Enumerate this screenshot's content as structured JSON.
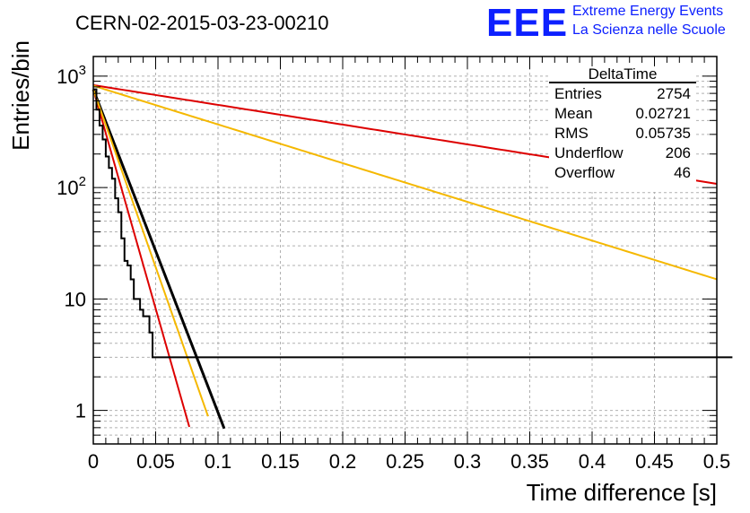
{
  "header": {
    "run_title": "CERN-02-2015-03-23-00210",
    "logo_text": "EEE",
    "logo_line1": "Extreme Energy Events",
    "logo_line2": "La Scienza nelle Scuole"
  },
  "stats_box": {
    "title": "DeltaTime",
    "rows": [
      {
        "label": "Entries",
        "value": "2754"
      },
      {
        "label": "Mean",
        "value": "0.02721"
      },
      {
        "label": "RMS",
        "value": "0.05735"
      },
      {
        "label": "Underflow",
        "value": "206"
      },
      {
        "label": "Overflow",
        "value": "46"
      }
    ]
  },
  "colors": {
    "histogram": "#000000",
    "fit_black": "#000000",
    "red": "#dd0000",
    "yellow": "#f5b800",
    "grid": "#b0b0b0",
    "logo": "#0d20ff"
  },
  "chart_data": {
    "type": "line",
    "title": "",
    "xlabel": "Time difference [s]",
    "ylabel": "Entries/bin",
    "y_scale": "log",
    "xlim": [
      0,
      0.5
    ],
    "ylim": [
      0.5,
      1500
    ],
    "grid": true,
    "x_ticks": [
      0,
      0.05,
      0.1,
      0.15,
      0.2,
      0.25,
      0.3,
      0.35,
      0.4,
      0.45,
      0.5
    ],
    "x_tick_labels": [
      "0",
      "0.05",
      "0.1",
      "0.15",
      "0.2",
      "0.25",
      "0.3",
      "0.35",
      "0.4",
      "0.45",
      "0.5"
    ],
    "y_ticks": [
      1,
      10,
      100,
      1000
    ],
    "y_tick_labels": [
      {
        "base": "1",
        "exp": ""
      },
      {
        "base": "10",
        "exp": ""
      },
      {
        "base": "10",
        "exp": "2"
      },
      {
        "base": "10",
        "exp": "3"
      }
    ],
    "histogram": {
      "bin_width": 0.0025,
      "x_start": 0,
      "counts": [
        760,
        500,
        360,
        270,
        190,
        150,
        120,
        80,
        60,
        35,
        22,
        20,
        15,
        10,
        10,
        8,
        7,
        7,
        5,
        3,
        3,
        3,
        3,
        3,
        3,
        3,
        3,
        3,
        3,
        3,
        3,
        3,
        3,
        3,
        3,
        3,
        3,
        3,
        3,
        3,
        3,
        3,
        3,
        3,
        3,
        3,
        3,
        3,
        3,
        3,
        3,
        3,
        3,
        3,
        3,
        3,
        3,
        3,
        3,
        3,
        3,
        3,
        3,
        3,
        3,
        3,
        3,
        3,
        3,
        3,
        3,
        3,
        3,
        3,
        3,
        3,
        3,
        3,
        3,
        3,
        3,
        3,
        3,
        3,
        3,
        3,
        3,
        3,
        3,
        3,
        3,
        3,
        3,
        3,
        3,
        3,
        3,
        3,
        3,
        3,
        3,
        3,
        3,
        3,
        3,
        3,
        3,
        3,
        3,
        3,
        3,
        3,
        3,
        3,
        3,
        3,
        3,
        3,
        3,
        3,
        3,
        3,
        3,
        3,
        3,
        3,
        3,
        3,
        3,
        3,
        3,
        3,
        3,
        3,
        3,
        3,
        3,
        3,
        3,
        3,
        3,
        3,
        3,
        3,
        3,
        3,
        3,
        3,
        3,
        3,
        3,
        3,
        3,
        3,
        3,
        3,
        3,
        3,
        3,
        3,
        3,
        3,
        3,
        3,
        3,
        3,
        3,
        3,
        3,
        3,
        3,
        3,
        3,
        3,
        3,
        3,
        3,
        3,
        3,
        3,
        3,
        3,
        3,
        3,
        3,
        3,
        3,
        3,
        3,
        3,
        3,
        3,
        3,
        3,
        3,
        3,
        3,
        3,
        3,
        3,
        3,
        3,
        3,
        3,
        3
      ]
    },
    "series": [
      {
        "color": "#000000",
        "kind": "exp",
        "x_range": [
          0,
          0.105
        ],
        "y0": 760,
        "tau": 0.01498,
        "width": 3
      },
      {
        "color": "#dd0000",
        "kind": "exp",
        "x_range": [
          0,
          0.077
        ],
        "y0": 760,
        "tau": 0.01104,
        "width": 2
      },
      {
        "color": "#f5b800",
        "kind": "exp",
        "x_range": [
          0,
          0.092
        ],
        "y0": 760,
        "tau": 0.01362,
        "width": 2
      },
      {
        "color": "#dd0000",
        "kind": "exp",
        "x_range": [
          0,
          0.5
        ],
        "y0": 830,
        "tau": 0.2452,
        "width": 2
      },
      {
        "color": "#f5b800",
        "kind": "exp",
        "x_range": [
          0,
          0.5
        ],
        "y0": 820,
        "tau": 0.125,
        "width": 2
      }
    ]
  }
}
